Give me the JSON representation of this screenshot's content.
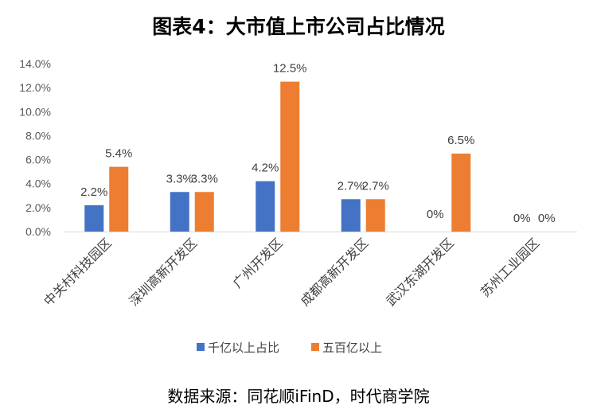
{
  "chart_data": {
    "type": "bar",
    "title": "图表4：大市值上市公司占比情况",
    "categories": [
      "中关村科技园区",
      "深圳高新开发区",
      "广州开发区",
      "成都高新开发区",
      "武汉东湖开发区",
      "苏州工业园区"
    ],
    "series": [
      {
        "name": "千亿以上占比",
        "values": [
          2.2,
          3.3,
          4.2,
          2.7,
          0,
          0
        ],
        "labels": [
          "2.2%",
          "3.3%",
          "4.2%",
          "2.7%",
          "",
          "0%"
        ],
        "color": "#4472C4"
      },
      {
        "name": "五百亿以上",
        "values": [
          5.4,
          3.3,
          12.5,
          2.7,
          6.5,
          0
        ],
        "labels": [
          "5.4%",
          "3.3%",
          "12.5%",
          "2.7%",
          "6.5%",
          "0%"
        ],
        "color": "#ED7D31"
      }
    ],
    "ylim": [
      0,
      14
    ],
    "yticks": [
      "0.0%",
      "2.0%",
      "4.0%",
      "6.0%",
      "8.0%",
      "10.0%",
      "12.0%",
      "14.0%"
    ],
    "ytick_values": [
      0,
      2,
      4,
      6,
      8,
      10,
      12,
      14
    ],
    "grid": false,
    "legend": "bottom"
  },
  "extra_label": "0%",
  "source": "数据来源：同花顺iFinD，时代商学院"
}
